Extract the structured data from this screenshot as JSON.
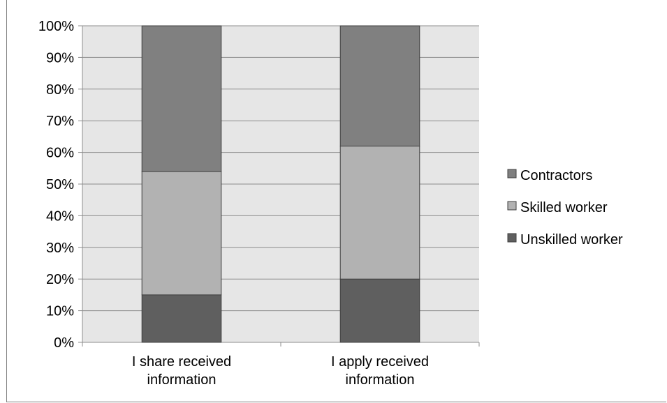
{
  "chart_data": {
    "type": "bar",
    "stacked": true,
    "percent": true,
    "categories": [
      "I share received information",
      "I apply received information"
    ],
    "category_lines": [
      [
        "I share received",
        "information"
      ],
      [
        "I apply received",
        "information"
      ]
    ],
    "series": [
      {
        "name": "Unskilled worker",
        "values": [
          15,
          20
        ],
        "color": "#5f5f5f"
      },
      {
        "name": "Skilled worker",
        "values": [
          39,
          42
        ],
        "color": "#b2b2b2"
      },
      {
        "name": "Contractors",
        "values": [
          46,
          38
        ],
        "color": "#808080"
      }
    ],
    "ylim": [
      0,
      100
    ],
    "yticks": [
      "0%",
      "10%",
      "20%",
      "30%",
      "40%",
      "50%",
      "60%",
      "70%",
      "80%",
      "90%",
      "100%"
    ],
    "grid": true,
    "legend_position": "right",
    "plot_background": "#e6e6e6"
  }
}
